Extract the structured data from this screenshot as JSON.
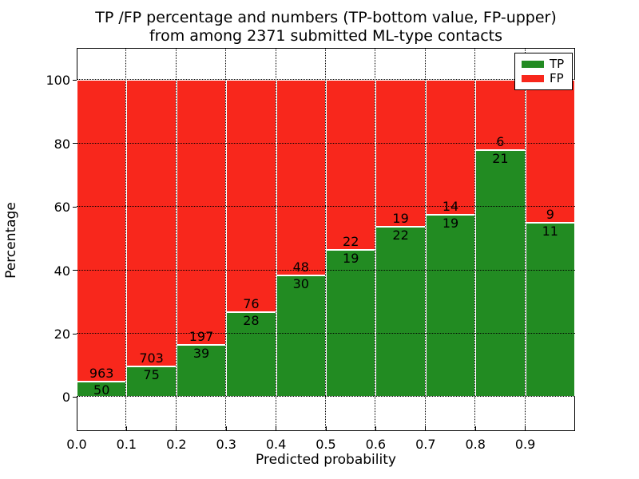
{
  "figure": {
    "background": "#ffffff"
  },
  "title": {
    "line1": "TP /FP percentage and numbers (TP-bottom value, FP-upper)",
    "line2": "from among 2371 submitted ML-type contacts"
  },
  "chart_data": {
    "type": "bar",
    "stacked": true,
    "title": "TP /FP percentage and numbers (TP-bottom value, FP-upper)\nfrom among 2371 submitted ML-type contacts",
    "xlabel": "Predicted probability",
    "ylabel": "Percentage",
    "total_contacts": 2371,
    "bin_width": 0.1,
    "bin_starts": [
      0.0,
      0.1,
      0.2,
      0.3,
      0.4,
      0.5,
      0.6,
      0.7,
      0.8,
      0.9
    ],
    "series": [
      {
        "name": "TP",
        "color": "#228b22",
        "counts": [
          50,
          75,
          39,
          28,
          30,
          19,
          22,
          19,
          21,
          11
        ],
        "percentages": [
          4.94,
          9.64,
          16.53,
          26.92,
          38.46,
          46.34,
          53.66,
          57.58,
          77.78,
          55.0
        ]
      },
      {
        "name": "FP",
        "color": "#f8271c",
        "counts": [
          963,
          703,
          197,
          76,
          48,
          22,
          19,
          14,
          6,
          9
        ],
        "percentages": [
          95.06,
          90.36,
          83.47,
          73.08,
          61.54,
          53.66,
          46.34,
          42.42,
          22.22,
          45.0
        ]
      }
    ],
    "bar_edge_color": "#ffffff",
    "x_tick_labels": [
      "0.0",
      "0.1",
      "0.2",
      "0.3",
      "0.4",
      "0.5",
      "0.6",
      "0.7",
      "0.8",
      "0.9"
    ],
    "y_ticks": [
      0,
      20,
      40,
      60,
      80,
      100
    ],
    "xlim": [
      0.0,
      1.0
    ],
    "ylim": [
      -10.7,
      110.1
    ],
    "grid": true,
    "grid_style": "dotted",
    "legend": {
      "position": "upper right",
      "entries": [
        {
          "label": "TP",
          "color": "#228b22"
        },
        {
          "label": "FP",
          "color": "#f8271c"
        }
      ]
    }
  }
}
